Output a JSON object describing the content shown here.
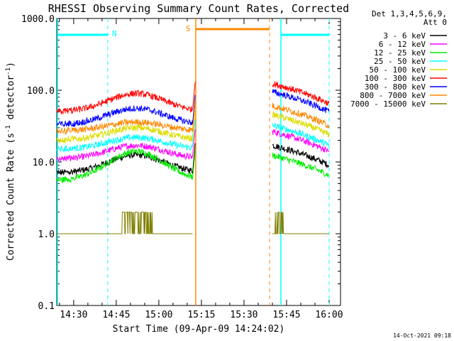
{
  "chart_data": {
    "type": "line",
    "title": "RHESSI Observing Summary Count Rates, Corrected",
    "xlabel": "Start Time (09-Apr-09 14:24:02)",
    "ylabel": "Corrected Count Rate (s",
    "ylabel_sup": "-1",
    "ylabel_mid": " detector",
    "ylabel_sup2": "-1",
    "ylabel_end": ")",
    "x_ticks": [
      "14:30",
      "14:45",
      "15:00",
      "15:15",
      "15:30",
      "15:45",
      "16:00"
    ],
    "y_ticks": [
      "1000.0",
      "100.0",
      "10.0",
      "1.0",
      "0.1"
    ],
    "y_scale": "log",
    "ylim": [
      0.1,
      1000
    ],
    "xlim": [
      "14:24:02",
      "16:04"
    ],
    "legend_header": [
      "Det 1,3,4,5,6,9,",
      "Att 0"
    ],
    "legend_position": "top-right",
    "series": [
      {
        "name": "3 - 6 keV",
        "color": "#000000",
        "base": 7.0,
        "peak": 12.5,
        "late": 9.0
      },
      {
        "name": "6 - 12 keV",
        "color": "#ff00ff",
        "base": 11.0,
        "peak": 17.0,
        "late": 14.0
      },
      {
        "name": "12 - 25 keV",
        "color": "#00ee00",
        "base": 5.5,
        "peak": 14.0,
        "late": 6.5
      },
      {
        "name": "25 - 50 keV",
        "color": "#00ffff",
        "base": 15.0,
        "peak": 22.0,
        "late": 17.0
      },
      {
        "name": "50 - 100 keV",
        "color": "#dddd00",
        "base": 20.0,
        "peak": 30.0,
        "late": 24.0
      },
      {
        "name": "100 - 300 keV",
        "color": "#ff0000",
        "base": 50.0,
        "peak": 90.0,
        "late": 65.0
      },
      {
        "name": "300 - 800 keV",
        "color": "#0000ff",
        "base": 33.0,
        "peak": 56.0,
        "late": 50.0
      },
      {
        "name": "800 - 7000 keV",
        "color": "#ff8800",
        "base": 27.0,
        "peak": 36.0,
        "late": 32.0
      },
      {
        "name": "7000 - 15000 keV",
        "color": "#808000",
        "base": 1.0,
        "peak": 2.0,
        "late": 1.0
      }
    ],
    "annotations": [
      {
        "label": "N",
        "color": "#00ffff"
      },
      {
        "label": "S",
        "color": "#ff8800"
      }
    ],
    "timestamp": "14-Oct-2021 09:18"
  }
}
